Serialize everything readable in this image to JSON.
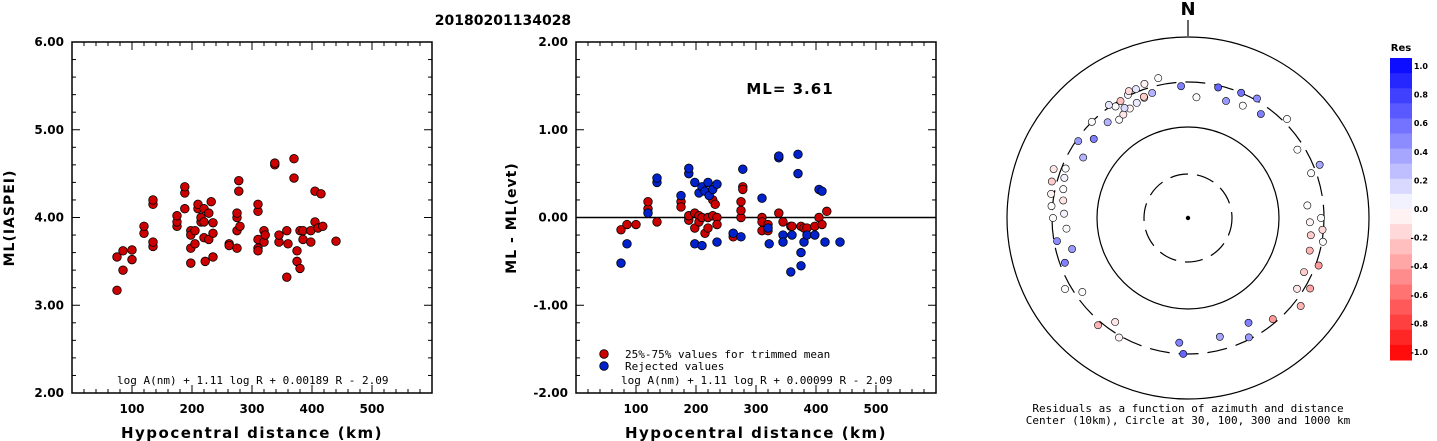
{
  "figure_title": "20180201134028",
  "chart_data": [
    {
      "type": "scatter",
      "title": "",
      "xlabel": "Hypocentral distance (km)",
      "ylabel": "ML(IASPEI)",
      "xlim": [
        0,
        600
      ],
      "ylim": [
        2.0,
        6.0
      ],
      "xticks": [
        "100",
        "200",
        "300",
        "400",
        "500"
      ],
      "yticks": [
        "2.00",
        "3.00",
        "4.00",
        "5.00",
        "6.00"
      ],
      "formula": "log A(nm) + 1.11 log R + 0.00189 R - 2.09",
      "point_color": "#cc0000",
      "points": [
        [
          75,
          3.17
        ],
        [
          75,
          3.55
        ],
        [
          85,
          3.62
        ],
        [
          85,
          3.4
        ],
        [
          100,
          3.52
        ],
        [
          100,
          3.63
        ],
        [
          120,
          3.82
        ],
        [
          120,
          3.9
        ],
        [
          135,
          3.67
        ],
        [
          135,
          3.72
        ],
        [
          135,
          4.15
        ],
        [
          135,
          4.2
        ],
        [
          175,
          3.9
        ],
        [
          175,
          3.95
        ],
        [
          175,
          4.02
        ],
        [
          188,
          4.28
        ],
        [
          188,
          4.35
        ],
        [
          188,
          4.1
        ],
        [
          198,
          3.85
        ],
        [
          198,
          3.8
        ],
        [
          198,
          3.65
        ],
        [
          198,
          3.48
        ],
        [
          205,
          3.7
        ],
        [
          205,
          3.85
        ],
        [
          210,
          4.1
        ],
        [
          210,
          4.15
        ],
        [
          215,
          3.95
        ],
        [
          215,
          4.0
        ],
        [
          220,
          4.1
        ],
        [
          220,
          3.95
        ],
        [
          220,
          3.77
        ],
        [
          222,
          3.5
        ],
        [
          228,
          4.05
        ],
        [
          228,
          3.75
        ],
        [
          232,
          4.18
        ],
        [
          235,
          3.55
        ],
        [
          235,
          3.82
        ],
        [
          235,
          3.94
        ],
        [
          262,
          3.7
        ],
        [
          262,
          3.68
        ],
        [
          275,
          3.65
        ],
        [
          275,
          3.85
        ],
        [
          275,
          4.0
        ],
        [
          275,
          4.05
        ],
        [
          278,
          4.42
        ],
        [
          278,
          4.3
        ],
        [
          280,
          3.9
        ],
        [
          310,
          3.65
        ],
        [
          310,
          3.62
        ],
        [
          310,
          3.75
        ],
        [
          310,
          4.07
        ],
        [
          310,
          4.15
        ],
        [
          320,
          3.72
        ],
        [
          320,
          3.85
        ],
        [
          322,
          3.8
        ],
        [
          338,
          4.6
        ],
        [
          338,
          4.62
        ],
        [
          345,
          3.72
        ],
        [
          345,
          3.8
        ],
        [
          358,
          3.32
        ],
        [
          358,
          3.85
        ],
        [
          360,
          3.7
        ],
        [
          370,
          4.67
        ],
        [
          370,
          4.45
        ],
        [
          375,
          3.62
        ],
        [
          375,
          3.5
        ],
        [
          380,
          3.85
        ],
        [
          380,
          3.42
        ],
        [
          385,
          3.75
        ],
        [
          385,
          3.85
        ],
        [
          398,
          3.85
        ],
        [
          398,
          3.72
        ],
        [
          405,
          3.95
        ],
        [
          405,
          4.3
        ],
        [
          410,
          3.88
        ],
        [
          415,
          4.27
        ],
        [
          418,
          3.9
        ],
        [
          440,
          3.73
        ]
      ]
    },
    {
      "type": "scatter",
      "title": "",
      "xlabel": "Hypocentral distance (km)",
      "ylabel": "ML - ML(evt)",
      "xlim": [
        0,
        600
      ],
      "ylim": [
        -2.0,
        2.0
      ],
      "xticks": [
        "100",
        "200",
        "300",
        "400",
        "500"
      ],
      "yticks": [
        "-2.00",
        "-1.00",
        "0.00",
        "1.00",
        "2.00"
      ],
      "annotation": "ML= 3.61",
      "legend": [
        {
          "label": "25%-75% values for trimmed mean",
          "color": "#cc0000"
        },
        {
          "label": "Rejected values",
          "color": "#0022cc"
        }
      ],
      "legend_position": "bottom-left",
      "formula": "log A(nm) + 1.11 log R + 0.00099 R - 2.09",
      "zero_line": 0,
      "trimmed_points": [
        [
          75,
          -0.14
        ],
        [
          85,
          -0.08
        ],
        [
          100,
          -0.08
        ],
        [
          120,
          0.1
        ],
        [
          120,
          0.18
        ],
        [
          135,
          -0.05
        ],
        [
          175,
          0.18
        ],
        [
          175,
          0.12
        ],
        [
          188,
          -0.03
        ],
        [
          188,
          0.02
        ],
        [
          198,
          0.05
        ],
        [
          198,
          -0.12
        ],
        [
          205,
          0.02
        ],
        [
          205,
          -0.05
        ],
        [
          210,
          0.0
        ],
        [
          215,
          -0.18
        ],
        [
          220,
          0.0
        ],
        [
          220,
          -0.12
        ],
        [
          228,
          0.2
        ],
        [
          228,
          0.02
        ],
        [
          232,
          0.15
        ],
        [
          235,
          0.0
        ],
        [
          235,
          -0.08
        ],
        [
          262,
          -0.18
        ],
        [
          262,
          -0.22
        ],
        [
          275,
          0.0
        ],
        [
          275,
          0.08
        ],
        [
          275,
          0.18
        ],
        [
          278,
          0.35
        ],
        [
          278,
          0.32
        ],
        [
          310,
          0.0
        ],
        [
          310,
          -0.05
        ],
        [
          310,
          -0.15
        ],
        [
          320,
          -0.15
        ],
        [
          320,
          -0.08
        ],
        [
          338,
          0.05
        ],
        [
          345,
          -0.05
        ],
        [
          358,
          -0.1
        ],
        [
          360,
          -0.1
        ],
        [
          375,
          -0.1
        ],
        [
          380,
          -0.12
        ],
        [
          385,
          -0.12
        ],
        [
          398,
          -0.1
        ],
        [
          405,
          0.0
        ],
        [
          410,
          -0.08
        ],
        [
          418,
          0.07
        ]
      ],
      "rejected_points": [
        [
          75,
          -0.52
        ],
        [
          85,
          -0.3
        ],
        [
          120,
          0.05
        ],
        [
          135,
          0.4
        ],
        [
          135,
          0.45
        ],
        [
          175,
          0.25
        ],
        [
          188,
          0.5
        ],
        [
          188,
          0.56
        ],
        [
          198,
          -0.3
        ],
        [
          198,
          0.4
        ],
        [
          205,
          0.28
        ],
        [
          210,
          -0.32
        ],
        [
          210,
          0.35
        ],
        [
          215,
          0.3
        ],
        [
          220,
          0.4
        ],
        [
          222,
          0.25
        ],
        [
          228,
          0.32
        ],
        [
          235,
          0.38
        ],
        [
          235,
          -0.28
        ],
        [
          262,
          -0.18
        ],
        [
          275,
          -0.22
        ],
        [
          278,
          0.55
        ],
        [
          310,
          0.22
        ],
        [
          320,
          -0.12
        ],
        [
          322,
          -0.3
        ],
        [
          338,
          0.68
        ],
        [
          338,
          0.7
        ],
        [
          345,
          -0.2
        ],
        [
          345,
          -0.28
        ],
        [
          358,
          -0.62
        ],
        [
          360,
          -0.2
        ],
        [
          370,
          0.72
        ],
        [
          370,
          0.5
        ],
        [
          375,
          -0.4
        ],
        [
          375,
          -0.55
        ],
        [
          380,
          -0.28
        ],
        [
          385,
          -0.2
        ],
        [
          398,
          -0.2
        ],
        [
          405,
          0.32
        ],
        [
          410,
          0.3
        ],
        [
          415,
          -0.28
        ],
        [
          440,
          -0.28
        ]
      ]
    },
    {
      "type": "scatter",
      "title": "N",
      "caption": "Residuals as a function of azimuth and distance",
      "caption2": "Center (10km), Circle at 30, 100, 300 and 1000 km",
      "colorbar_title": "Res",
      "colorbar_ticks": [
        "1.0",
        "0.8",
        "0.6",
        "0.4",
        "0.2",
        "0.0",
        "-0.2",
        "-0.4",
        "-0.6",
        "-0.8",
        "-1.0"
      ],
      "colorbar_range": [
        -1.0,
        1.0
      ],
      "positive_color": "#0000ff",
      "negative_color": "#ff0000",
      "points_azimuth_deg_res": [
        [
          -35,
          0.01
        ],
        [
          -33,
          0.02
        ],
        [
          -32,
          -0.1
        ],
        [
          -30,
          -0.25
        ],
        [
          -28,
          -0.05
        ],
        [
          -26,
          0.05
        ],
        [
          -24,
          0.08
        ],
        [
          -22,
          0.1
        ],
        [
          -20,
          0.02
        ],
        [
          -18,
          -0.05
        ],
        [
          -16,
          0.3
        ],
        [
          -12,
          0.01
        ],
        [
          -3,
          0.5
        ],
        [
          4,
          0.01
        ],
        [
          13,
          0.6
        ],
        [
          18,
          0.4
        ],
        [
          23,
          0.55
        ],
        [
          26,
          0.01
        ],
        [
          30,
          0.45
        ],
        [
          35,
          0.5
        ],
        [
          45,
          0.01
        ],
        [
          58,
          0.01
        ],
        [
          68,
          0.35
        ],
        [
          70,
          0.01
        ],
        [
          84,
          0.01
        ],
        [
          90,
          0.01
        ],
        [
          92,
          -0.05
        ],
        [
          95,
          -0.15
        ],
        [
          98,
          -0.2
        ],
        [
          100,
          0.01
        ],
        [
          105,
          -0.3
        ],
        [
          110,
          -0.4
        ],
        [
          115,
          -0.2
        ],
        [
          120,
          -0.35
        ],
        [
          123,
          -0.1
        ],
        [
          128,
          -0.3
        ],
        [
          140,
          -0.4
        ],
        [
          150,
          0.5
        ],
        [
          153,
          0.4
        ],
        [
          165,
          0.35
        ],
        [
          182,
          0.6
        ],
        [
          184,
          0.5
        ],
        [
          210,
          -0.05
        ],
        [
          215,
          -0.1
        ],
        [
          220,
          -0.3
        ],
        [
          235,
          0.01
        ],
        [
          240,
          0.01
        ],
        [
          250,
          0.5
        ],
        [
          255,
          0.4
        ],
        [
          260,
          0.45
        ],
        [
          265,
          0.01
        ],
        [
          270,
          0.01
        ],
        [
          272,
          0.05
        ],
        [
          275,
          0.01
        ],
        [
          278,
          -0.1
        ],
        [
          280,
          -0.05
        ],
        [
          283,
          0.01
        ],
        [
          285,
          -0.2
        ],
        [
          288,
          0.05
        ],
        [
          290,
          -0.1
        ],
        [
          292,
          0.01
        ],
        [
          300,
          0.3
        ],
        [
          305,
          0.4
        ],
        [
          310,
          0.5
        ],
        [
          315,
          0.01
        ],
        [
          320,
          0.3
        ],
        [
          325,
          0.1
        ],
        [
          330,
          0.15
        ],
        [
          335,
          -0.15
        ],
        [
          340,
          -0.2
        ]
      ]
    }
  ]
}
